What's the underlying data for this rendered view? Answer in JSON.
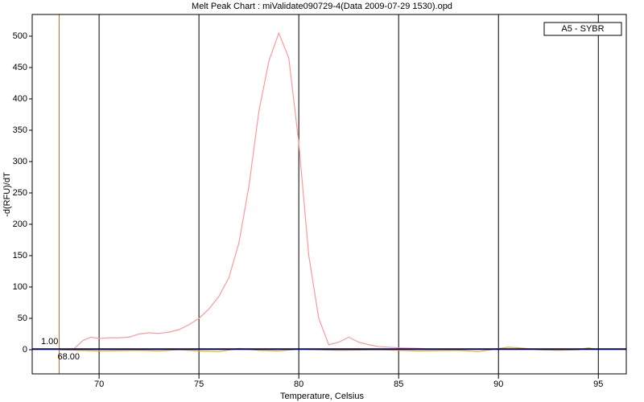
{
  "chart_data": {
    "type": "line",
    "title": "Melt Peak Chart : miValidate090729-4(Data 2009-07-29 1530).opd",
    "x_label": "Temperature, Celsius",
    "y_label": "-d(RFU)/dT",
    "xlim": [
      66.65,
      96.4
    ],
    "ylim": [
      -38.5,
      534.6
    ],
    "xticks": [
      70,
      75,
      80,
      85,
      90,
      95
    ],
    "yticks": [
      0,
      50,
      100,
      150,
      200,
      250,
      300,
      350,
      400,
      450,
      500
    ],
    "grid": "x",
    "legend": "top-right",
    "threshold": {
      "value": 1,
      "label": "1.00",
      "color": "#000080"
    },
    "marker_line": {
      "value": 68,
      "label": "68.00",
      "color": "#d2691e"
    },
    "series": [
      {
        "name": "A5 - SYBR",
        "color": "#ff9999",
        "x": [
          68.7,
          69.2,
          69.6,
          70,
          70.5,
          71,
          71.5,
          72,
          72.5,
          73,
          73.5,
          74,
          74.5,
          75,
          75.5,
          76,
          76.5,
          77,
          77.5,
          78,
          78.5,
          79,
          79.5,
          80,
          80.5,
          81,
          81.5,
          82,
          82.5,
          83,
          83.5,
          84,
          85,
          86,
          86.5
        ],
        "values": [
          0,
          15,
          20,
          18,
          19,
          19,
          20,
          25,
          27,
          26,
          28,
          32,
          40,
          50,
          65,
          85,
          115,
          170,
          260,
          380,
          460,
          505,
          465,
          330,
          150,
          50,
          8,
          12,
          20,
          12,
          8,
          5,
          3,
          2,
          1
        ]
      },
      {
        "color": "#e6b800",
        "x": [
          68,
          70,
          72,
          73,
          74,
          75,
          76,
          77,
          78,
          79,
          80,
          82,
          84,
          86,
          88,
          89,
          90,
          90.5,
          91,
          92,
          93,
          94,
          94.5,
          95
        ],
        "values": [
          0,
          -2,
          -1,
          -2,
          0,
          -2,
          -3,
          2,
          -1,
          -2,
          1,
          -1,
          0,
          -2,
          -1,
          -3,
          2,
          4,
          3,
          0,
          -1,
          0,
          3,
          0
        ]
      }
    ]
  }
}
